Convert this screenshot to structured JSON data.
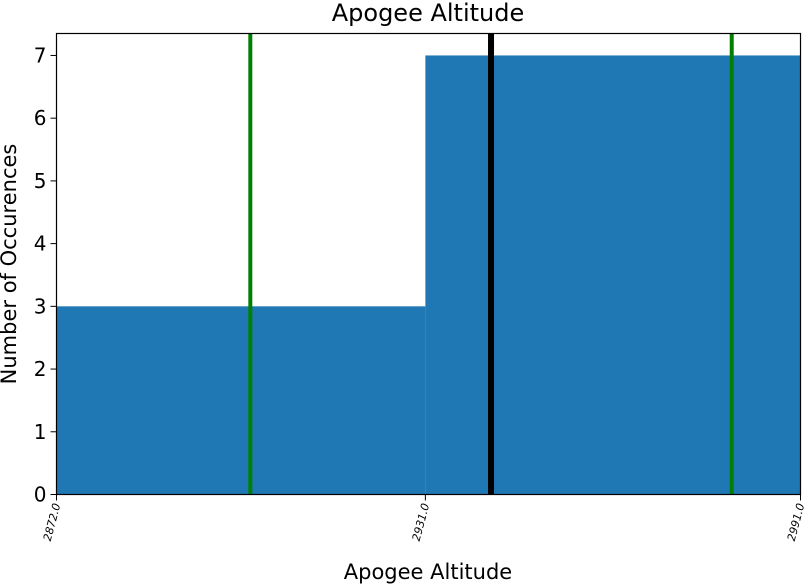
{
  "chart_data": {
    "type": "bar",
    "title": "Apogee Altitude",
    "xlabel": "Apogee Altitude",
    "ylabel": "Number of Occurences",
    "bins": [
      {
        "start": 2872.0,
        "end": 2931.0,
        "count": 3
      },
      {
        "start": 2931.0,
        "end": 2991.0,
        "count": 7
      }
    ],
    "xlim": [
      2872.0,
      2991.0
    ],
    "ylim": [
      0,
      7.35
    ],
    "x_ticks": [
      2872.0,
      2931.0,
      2991.0
    ],
    "x_tick_labels": [
      "2872.0",
      "2931.0",
      "2991.0"
    ],
    "y_ticks": [
      0,
      1,
      2,
      3,
      4,
      5,
      6,
      7
    ],
    "y_tick_labels": [
      "0",
      "1",
      "2",
      "3",
      "4",
      "5",
      "6",
      "7"
    ],
    "vertical_lines": [
      {
        "x": 2903.0,
        "color": "#008000",
        "role": "lower bound"
      },
      {
        "x": 2941.5,
        "color": "#000000",
        "role": "mean"
      },
      {
        "x": 2980.0,
        "color": "#008000",
        "role": "upper bound"
      }
    ],
    "bar_color": "#1f77b4",
    "grid": false,
    "legend": "none"
  }
}
